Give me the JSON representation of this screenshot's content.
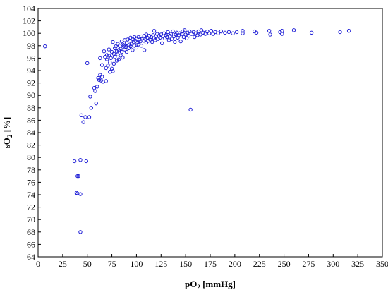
{
  "chart_data": {
    "type": "scatter",
    "title": "",
    "xlabel": "pO",
    "xlabel_subscript": "2",
    "xlabel_unit": " [mmHg]",
    "ylabel": "sO",
    "ylabel_subscript": "2",
    "ylabel_unit": " [%]",
    "xlim": [
      0,
      350
    ],
    "ylim": [
      64,
      104
    ],
    "x_ticks": [
      0,
      25,
      50,
      75,
      100,
      125,
      150,
      175,
      200,
      225,
      250,
      275,
      300,
      325,
      350
    ],
    "y_ticks": [
      64,
      66,
      68,
      70,
      72,
      74,
      76,
      78,
      80,
      82,
      84,
      86,
      88,
      90,
      92,
      94,
      96,
      98,
      100,
      102,
      104
    ],
    "grid": false,
    "marker": "circle-open",
    "marker_color": "#1f1fd6",
    "series": [
      {
        "points": [
          [
            7,
            97.9
          ],
          [
            37,
            79.4
          ],
          [
            39,
            74.3
          ],
          [
            40,
            74.2
          ],
          [
            40,
            77.0
          ],
          [
            41,
            77.0
          ],
          [
            43,
            68.0
          ],
          [
            43,
            74.1
          ],
          [
            43,
            79.6
          ],
          [
            44,
            86.8
          ],
          [
            46,
            85.7
          ],
          [
            48,
            86.5
          ],
          [
            49,
            79.4
          ],
          [
            50,
            95.2
          ],
          [
            52,
            86.5
          ],
          [
            53,
            89.8
          ],
          [
            54,
            88.0
          ],
          [
            57,
            91.2
          ],
          [
            58,
            90.7
          ],
          [
            59,
            88.7
          ],
          [
            60,
            91.4
          ],
          [
            61,
            92.8
          ],
          [
            62,
            92.5
          ],
          [
            63,
            93.3
          ],
          [
            63,
            96.0
          ],
          [
            64,
            92.4
          ],
          [
            65,
            93.0
          ],
          [
            65,
            94.9
          ],
          [
            66,
            92.2
          ],
          [
            67,
            97.1
          ],
          [
            68,
            96.2
          ],
          [
            69,
            94.4
          ],
          [
            69,
            92.3
          ],
          [
            70,
            95.8
          ],
          [
            70,
            96.5
          ],
          [
            71,
            94.8
          ],
          [
            72,
            96.4
          ],
          [
            72,
            97.4
          ],
          [
            73,
            95.3
          ],
          [
            73,
            93.8
          ],
          [
            74,
            96.0
          ],
          [
            75,
            94.3
          ],
          [
            75,
            97.0
          ],
          [
            76,
            98.6
          ],
          [
            76,
            93.9
          ],
          [
            77,
            96.7
          ],
          [
            77,
            95.1
          ],
          [
            78,
            97.6
          ],
          [
            78,
            96.2
          ],
          [
            79,
            97.9
          ],
          [
            80,
            95.6
          ],
          [
            80,
            97.1
          ],
          [
            81,
            98.3
          ],
          [
            81,
            96.6
          ],
          [
            82,
            97.3
          ],
          [
            82,
            95.8
          ],
          [
            83,
            98.0
          ],
          [
            84,
            97.5
          ],
          [
            84,
            96.4
          ],
          [
            85,
            98.7
          ],
          [
            85,
            97.0
          ],
          [
            86,
            98.2
          ],
          [
            86,
            96.1
          ],
          [
            87,
            98.0
          ],
          [
            88,
            97.4
          ],
          [
            88,
            98.9
          ],
          [
            89,
            97.8
          ],
          [
            90,
            98.4
          ],
          [
            90,
            97.0
          ],
          [
            91,
            99.0
          ],
          [
            92,
            98.1
          ],
          [
            92,
            97.6
          ],
          [
            93,
            98.8
          ],
          [
            94,
            97.9
          ],
          [
            94,
            99.3
          ],
          [
            95,
            98.3
          ],
          [
            96,
            97.3
          ],
          [
            96,
            99.1
          ],
          [
            97,
            98.6
          ],
          [
            98,
            99.4
          ],
          [
            98,
            98.0
          ],
          [
            99,
            98.8
          ],
          [
            100,
            99.1
          ],
          [
            100,
            97.7
          ],
          [
            101,
            98.5
          ],
          [
            102,
            99.4
          ],
          [
            102,
            98.2
          ],
          [
            103,
            99.0
          ],
          [
            104,
            98.7
          ],
          [
            105,
            99.5
          ],
          [
            105,
            98.0
          ],
          [
            106,
            99.2
          ],
          [
            107,
            98.8
          ],
          [
            108,
            99.6
          ],
          [
            108,
            97.3
          ],
          [
            109,
            99.1
          ],
          [
            110,
            98.5
          ],
          [
            110,
            99.8
          ],
          [
            111,
            99.3
          ],
          [
            112,
            98.8
          ],
          [
            113,
            99.6
          ],
          [
            114,
            99.0
          ],
          [
            115,
            99.4
          ],
          [
            116,
            98.6
          ],
          [
            117,
            99.7
          ],
          [
            118,
            99.2
          ],
          [
            118,
            100.4
          ],
          [
            119,
            98.9
          ],
          [
            120,
            99.5
          ],
          [
            121,
            99.9
          ],
          [
            122,
            99.1
          ],
          [
            123,
            99.6
          ],
          [
            124,
            99.3
          ],
          [
            125,
            99.8
          ],
          [
            126,
            98.4
          ],
          [
            127,
            99.5
          ],
          [
            128,
            100.0
          ],
          [
            129,
            99.2
          ],
          [
            130,
            99.7
          ],
          [
            131,
            99.4
          ],
          [
            132,
            100.2
          ],
          [
            133,
            98.9
          ],
          [
            134,
            99.6
          ],
          [
            135,
            99.9
          ],
          [
            136,
            99.1
          ],
          [
            137,
            100.3
          ],
          [
            138,
            99.5
          ],
          [
            139,
            98.6
          ],
          [
            140,
            99.8
          ],
          [
            141,
            100.1
          ],
          [
            142,
            99.3
          ],
          [
            143,
            99.7
          ],
          [
            144,
            100.0
          ],
          [
            145,
            98.7
          ],
          [
            146,
            99.9
          ],
          [
            147,
            100.3
          ],
          [
            148,
            99.4
          ],
          [
            149,
            100.5
          ],
          [
            150,
            99.8
          ],
          [
            151,
            99.2
          ],
          [
            152,
            100.1
          ],
          [
            153,
            99.6
          ],
          [
            154,
            100.3
          ],
          [
            155,
            87.7
          ],
          [
            156,
            99.9
          ],
          [
            158,
            100.2
          ],
          [
            159,
            99.4
          ],
          [
            160,
            100.0
          ],
          [
            162,
            99.7
          ],
          [
            163,
            100.3
          ],
          [
            165,
            99.8
          ],
          [
            166,
            100.5
          ],
          [
            168,
            100.1
          ],
          [
            170,
            99.9
          ],
          [
            172,
            100.3
          ],
          [
            174,
            100.0
          ],
          [
            176,
            100.4
          ],
          [
            178,
            99.9
          ],
          [
            180,
            100.2
          ],
          [
            183,
            100.0
          ],
          [
            186,
            100.3
          ],
          [
            190,
            100.1
          ],
          [
            194,
            100.2
          ],
          [
            198,
            100.0
          ],
          [
            202,
            100.2
          ],
          [
            208,
            100.4
          ],
          [
            208,
            100.0
          ],
          [
            220,
            100.3
          ],
          [
            222,
            100.1
          ],
          [
            235,
            100.4
          ],
          [
            236,
            99.8
          ],
          [
            246,
            100.2
          ],
          [
            248,
            100.4
          ],
          [
            248,
            99.9
          ],
          [
            260,
            100.5
          ],
          [
            278,
            100.1
          ],
          [
            307,
            100.2
          ],
          [
            316,
            100.4
          ]
        ]
      }
    ]
  }
}
